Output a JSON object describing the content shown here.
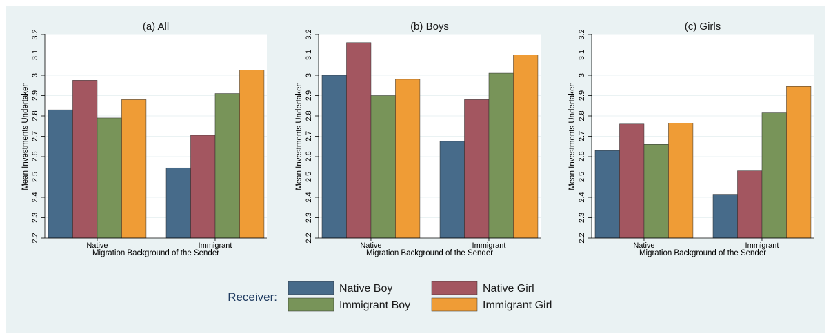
{
  "legend": {
    "title": "Receiver:",
    "items": [
      {
        "label": "Native Boy",
        "color": "#476b8a"
      },
      {
        "label": "Native Girl",
        "color": "#a35660"
      },
      {
        "label": "Immigrant Boy",
        "color": "#789459"
      },
      {
        "label": "Immigrant Girl",
        "color": "#ef9c36"
      }
    ]
  },
  "chart_data": [
    {
      "type": "bar",
      "title": "(a) All",
      "xlabel": "Migration Background of the Sender",
      "ylabel": "Mean Investments Undertaken",
      "categories": [
        "Native",
        "Immigrant"
      ],
      "ylim": [
        2.2,
        3.2
      ],
      "yticks": [
        "2.2",
        "2.3",
        "2.4",
        "2.5",
        "2.6",
        "2.7",
        "2.8",
        "2.9",
        "3",
        "3.1",
        "3.2"
      ],
      "grid": true,
      "series": [
        {
          "name": "Native Boy",
          "values": [
            2.83,
            2.545
          ]
        },
        {
          "name": "Native Girl",
          "values": [
            2.975,
            2.705
          ]
        },
        {
          "name": "Immigrant Boy",
          "values": [
            2.79,
            2.91
          ]
        },
        {
          "name": "Immigrant Girl",
          "values": [
            2.88,
            3.025
          ]
        }
      ]
    },
    {
      "type": "bar",
      "title": "(b) Boys",
      "xlabel": "Migration Background of the Sender",
      "ylabel": "Mean Investments Undertaken",
      "categories": [
        "Native",
        "Immigrant"
      ],
      "ylim": [
        2.2,
        3.2
      ],
      "yticks": [
        "2.2",
        "2.3",
        "2.4",
        "2.5",
        "2.6",
        "2.7",
        "2.8",
        "2.9",
        "3",
        "3.1",
        "3.2"
      ],
      "grid": true,
      "series": [
        {
          "name": "Native Boy",
          "values": [
            3.0,
            2.675
          ]
        },
        {
          "name": "Native Girl",
          "values": [
            3.16,
            2.88
          ]
        },
        {
          "name": "Immigrant Boy",
          "values": [
            2.9,
            3.01
          ]
        },
        {
          "name": "Immigrant Girl",
          "values": [
            2.98,
            3.1
          ]
        }
      ]
    },
    {
      "type": "bar",
      "title": "(c) Girls",
      "xlabel": "Migration Background of the Sender",
      "ylabel": "Mean Investments Undertaken",
      "categories": [
        "Native",
        "Immigrant"
      ],
      "ylim": [
        2.2,
        3.2
      ],
      "yticks": [
        "2.2",
        "2.3",
        "2.4",
        "2.5",
        "2.6",
        "2.7",
        "2.8",
        "2.9",
        "3",
        "3.1",
        "3.2"
      ],
      "grid": true,
      "series": [
        {
          "name": "Native Boy",
          "values": [
            2.63,
            2.415
          ]
        },
        {
          "name": "Native Girl",
          "values": [
            2.76,
            2.53
          ]
        },
        {
          "name": "Immigrant Boy",
          "values": [
            2.66,
            2.815
          ]
        },
        {
          "name": "Immigrant Girl",
          "values": [
            2.765,
            2.945
          ]
        }
      ]
    }
  ]
}
